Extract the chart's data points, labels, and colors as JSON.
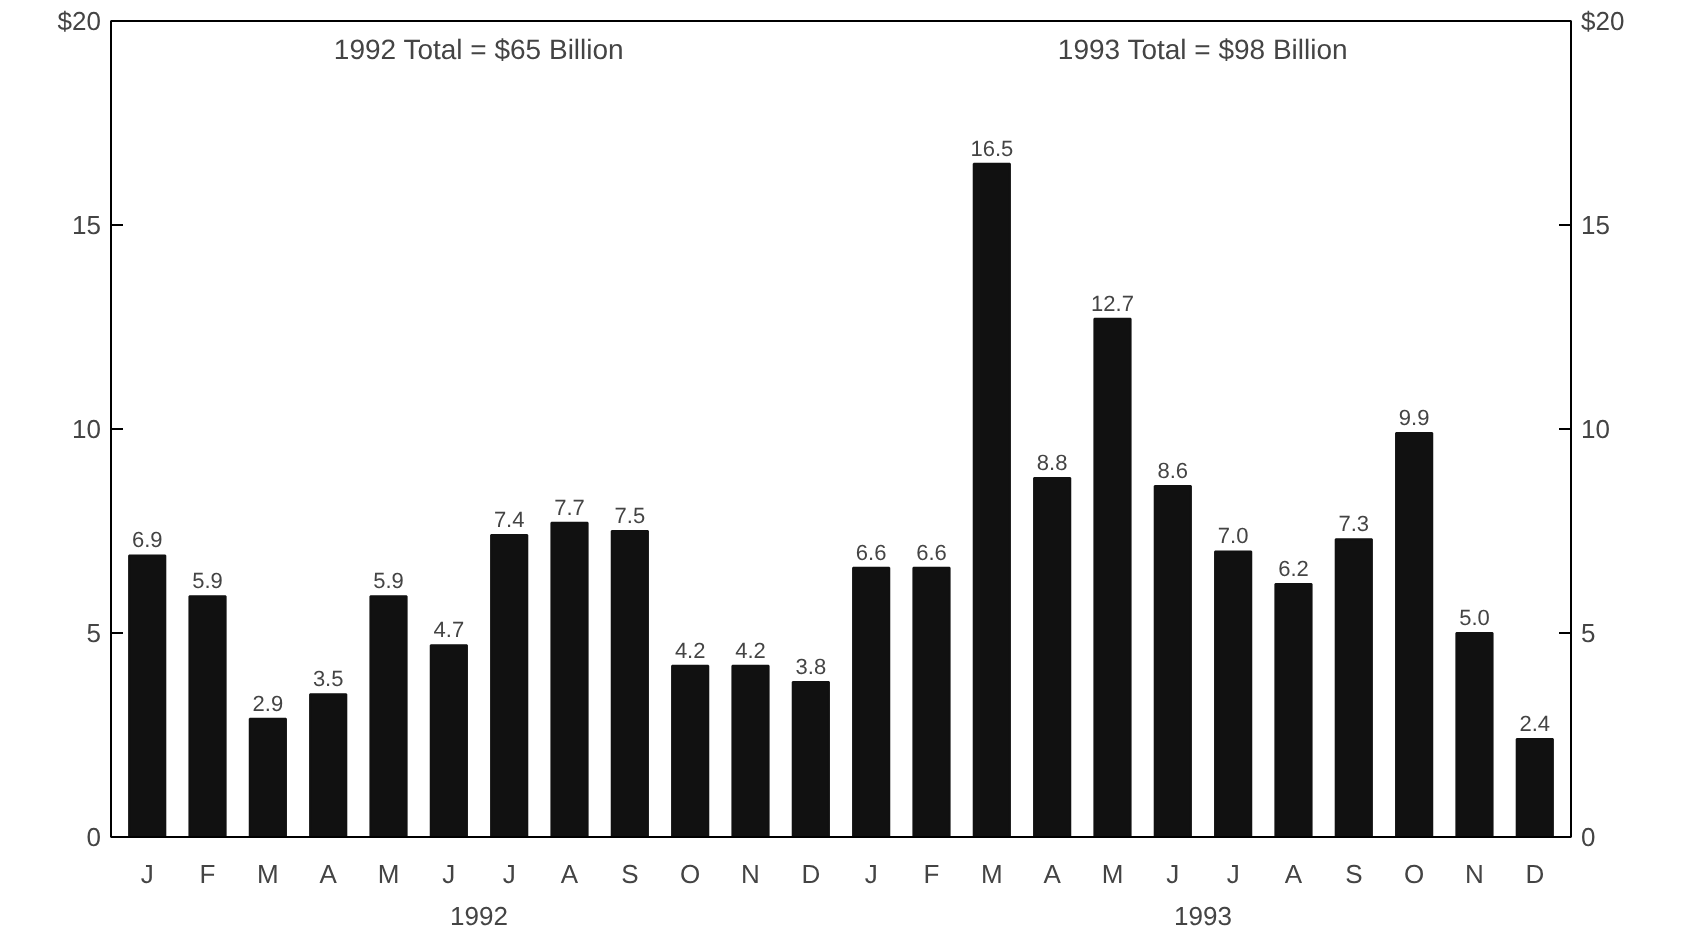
{
  "chart_data": {
    "type": "bar",
    "categories": [
      "J",
      "F",
      "M",
      "A",
      "M",
      "J",
      "J",
      "A",
      "S",
      "O",
      "N",
      "D",
      "J",
      "F",
      "M",
      "A",
      "M",
      "J",
      "J",
      "A",
      "S",
      "O",
      "N",
      "D"
    ],
    "values": [
      6.9,
      5.9,
      2.9,
      3.5,
      5.9,
      4.7,
      7.4,
      7.7,
      7.5,
      4.2,
      4.2,
      3.8,
      6.6,
      6.6,
      16.5,
      8.8,
      12.7,
      8.6,
      7.0,
      6.2,
      7.3,
      9.9,
      5.0,
      2.4
    ],
    "value_labels": [
      "6.9",
      "5.9",
      "2.9",
      "3.5",
      "5.9",
      "4.7",
      "7.4",
      "7.7",
      "7.5",
      "4.2",
      "4.2",
      "3.8",
      "6.6",
      "6.6",
      "16.5",
      "8.8",
      "12.7",
      "8.6",
      "7.0",
      "6.2",
      "7.3",
      "9.9",
      "5.0",
      "2.4"
    ],
    "color": "#111111",
    "ylim": [
      0,
      20
    ],
    "yticks": [
      0,
      5,
      10,
      15,
      {
        "value": 20,
        "label": "$20"
      }
    ],
    "y2lim": [
      0,
      20
    ],
    "y2ticks": [
      0,
      5,
      10,
      15,
      {
        "value": 20,
        "label": "$20"
      }
    ],
    "annotations": [
      "1992 Total = $65 Billion",
      "1993 Total = $98 Billion",
      "1992",
      "1993"
    ]
  }
}
